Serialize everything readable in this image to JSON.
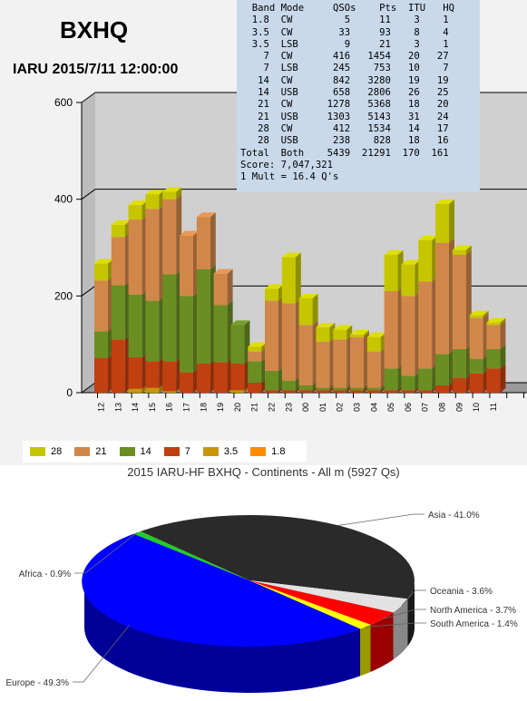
{
  "header": {
    "call": "BXHQ",
    "contest_time": "IARU 2015/7/11 12:00:00"
  },
  "stats_table": {
    "header": [
      "Band",
      "Mode",
      "QSOs",
      "Pts",
      "ITU",
      "HQ"
    ],
    "rows": [
      [
        "1.8",
        "CW",
        "5",
        "11",
        "3",
        "1"
      ],
      [
        "3.5",
        "CW",
        "33",
        "93",
        "8",
        "4"
      ],
      [
        "3.5",
        "LSB",
        "9",
        "21",
        "3",
        "1"
      ],
      [
        "7",
        "CW",
        "416",
        "1454",
        "20",
        "27"
      ],
      [
        "7",
        "LSB",
        "245",
        "753",
        "10",
        "7"
      ],
      [
        "14",
        "CW",
        "842",
        "3280",
        "19",
        "19"
      ],
      [
        "14",
        "USB",
        "658",
        "2806",
        "26",
        "25"
      ],
      [
        "21",
        "CW",
        "1278",
        "5368",
        "18",
        "20"
      ],
      [
        "21",
        "USB",
        "1303",
        "5143",
        "31",
        "24"
      ],
      [
        "28",
        "CW",
        "412",
        "1534",
        "14",
        "17"
      ],
      [
        "28",
        "USB",
        "238",
        "828",
        "18",
        "16"
      ],
      [
        "Total",
        "Both",
        "5439",
        "21291",
        "170",
        "161"
      ]
    ],
    "score": "Score: 7,047,321",
    "mult": "1 Mult = 16.4 Q's"
  },
  "chart_data": [
    {
      "type": "bar",
      "stacked": true,
      "categories": [
        "12",
        "13",
        "14",
        "15",
        "16",
        "17",
        "18",
        "19",
        "20",
        "21",
        "22",
        "23",
        "00",
        "01",
        "02",
        "03",
        "04",
        "05",
        "06",
        "07",
        "08",
        "09",
        "10",
        "11"
      ],
      "ylim": [
        0,
        600
      ],
      "yticks": [
        0,
        200,
        400,
        600
      ],
      "grid": true,
      "legend_position": "bottom",
      "series": [
        {
          "name": "1.8",
          "color": "#ff8c00",
          "values": [
            0,
            0,
            0,
            0,
            0,
            0,
            0,
            0,
            0,
            0,
            0,
            0,
            0,
            0,
            0,
            0,
            0,
            0,
            0,
            0,
            0,
            0,
            0,
            0
          ]
        },
        {
          "name": "3.5",
          "color": "#c8960a",
          "values": [
            0,
            0,
            8,
            10,
            3,
            0,
            0,
            0,
            5,
            0,
            0,
            0,
            0,
            0,
            0,
            0,
            0,
            0,
            0,
            0,
            0,
            0,
            0,
            0
          ]
        },
        {
          "name": "7",
          "color": "#c04010",
          "values": [
            72,
            110,
            65,
            55,
            62,
            42,
            60,
            63,
            55,
            20,
            5,
            5,
            5,
            5,
            5,
            5,
            5,
            5,
            5,
            5,
            15,
            30,
            40,
            50
          ]
        },
        {
          "name": "14",
          "color": "#6b8e23",
          "values": [
            55,
            112,
            130,
            125,
            180,
            158,
            195,
            118,
            80,
            45,
            40,
            20,
            10,
            5,
            5,
            5,
            5,
            45,
            30,
            45,
            65,
            60,
            30,
            40
          ]
        },
        {
          "name": "21",
          "color": "#d2874a",
          "values": [
            105,
            100,
            155,
            190,
            155,
            125,
            108,
            65,
            0,
            20,
            145,
            160,
            125,
            95,
            100,
            105,
            75,
            160,
            165,
            180,
            230,
            195,
            85,
            50
          ]
        },
        {
          "name": "28",
          "color": "#c6c600",
          "values": [
            35,
            25,
            30,
            30,
            15,
            0,
            0,
            0,
            0,
            10,
            25,
            95,
            55,
            30,
            20,
            5,
            30,
            75,
            65,
            85,
            80,
            10,
            5,
            5
          ]
        }
      ]
    },
    {
      "type": "pie",
      "title": "2015 IARU-HF BXHQ - Continents - All m (5927 Qs)",
      "slices": [
        {
          "label": "Asia - 41.0%",
          "value": 41.0,
          "color": "#2a2a2a"
        },
        {
          "label": "Oceania - 3.6%",
          "value": 3.6,
          "color": "#e2e2e2"
        },
        {
          "label": "North America - 3.7%",
          "value": 3.7,
          "color": "#ff0000"
        },
        {
          "label": "South America - 1.4%",
          "value": 1.4,
          "color": "#ffff00"
        },
        {
          "label": "Europe - 49.3%",
          "value": 49.3,
          "color": "#0000ff"
        },
        {
          "label": "Africa - 0.9%",
          "value": 0.9,
          "color": "#22cc22"
        }
      ]
    }
  ]
}
